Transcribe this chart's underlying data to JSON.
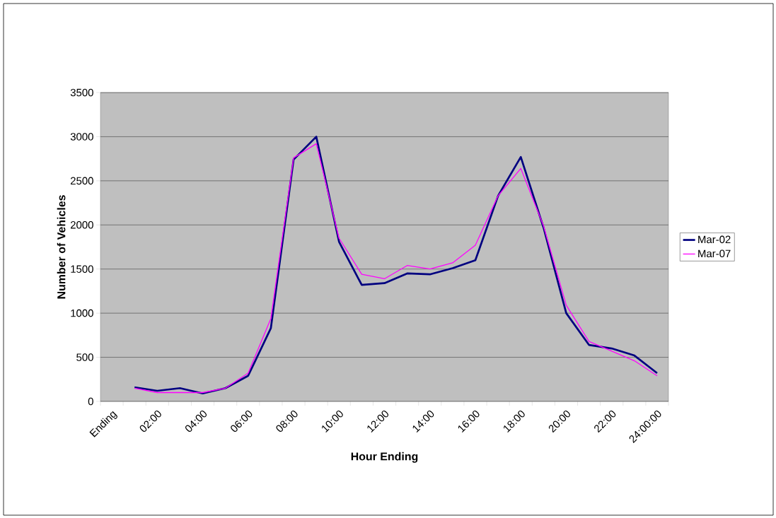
{
  "chart_data": {
    "type": "line",
    "xlabel": "Hour Ending",
    "ylabel": "Number of Vehicles",
    "categories": [
      "Ending",
      null,
      "02:00",
      null,
      "04:00",
      null,
      "06:00",
      null,
      "08:00",
      null,
      "10:00",
      null,
      "12:00",
      null,
      "14:00",
      null,
      "16:00",
      null,
      "18:00",
      null,
      "20:00",
      null,
      "22:00",
      null,
      "24:00:00"
    ],
    "series": [
      {
        "name": "Mar-02",
        "color": "#000080",
        "values": [
          null,
          160,
          120,
          150,
          90,
          150,
          290,
          830,
          2740,
          3000,
          1810,
          1320,
          1340,
          1450,
          1440,
          1510,
          1600,
          2330,
          2770,
          1970,
          1000,
          640,
          600,
          520,
          320
        ]
      },
      {
        "name": "Mar-07",
        "color": "#ff00ff",
        "values": [
          null,
          150,
          100,
          100,
          100,
          150,
          320,
          940,
          2760,
          2920,
          1850,
          1440,
          1390,
          1540,
          1500,
          1570,
          1770,
          2330,
          2640,
          1990,
          1090,
          680,
          570,
          460,
          290
        ]
      }
    ],
    "ylim": [
      0,
      3500
    ],
    "yticks": [
      0,
      500,
      1000,
      1500,
      2000,
      2500,
      3000,
      3500
    ],
    "grid": "y",
    "legend": "right",
    "marker": "none",
    "line_style": "solid"
  }
}
